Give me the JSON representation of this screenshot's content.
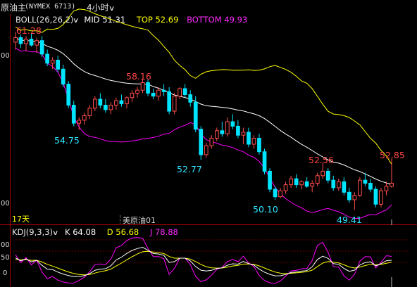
{
  "header": {
    "name": "原油主",
    "code": "(NYMEX 6713)",
    "period": "4小时",
    "period_chevron": "chevron-down-icon"
  },
  "boll_legend": {
    "label": "BOLL(26,26,2)",
    "mid": "MID 51.31",
    "top": "TOP 52.69",
    "bottom": "BOTTOM 49.93",
    "chevron": "chevron-down-icon"
  },
  "kdj_legend": {
    "label": "KDJ(9,3,3)",
    "k": "K 64.08",
    "d": "D 56.68",
    "j": "J 78.88",
    "chevron": "chevron-down-icon"
  },
  "main_chart": {
    "y_labels": [
      "00",
      "00"
    ],
    "period_marker": "17天",
    "watermark": "美原油01",
    "annotations": {
      "high1": "61.28",
      "high2": "58.16",
      "low1": "54.75",
      "low2": "52.77",
      "low3": "50.10",
      "high3": "52.56",
      "low4": "49.41",
      "high4": "52.85"
    }
  },
  "kdj_chart": {
    "y_labels": [
      "00",
      "50",
      "0"
    ]
  },
  "colors": {
    "background": "#000000",
    "up": "#ff4d4d",
    "down": "#00e5ff",
    "boll_mid": "#ffffff",
    "boll_top": "#ffff00",
    "boll_bottom": "#ff00ff",
    "high_label": "#ff4545",
    "low_label": "#2ee6ff",
    "axis": "#b00000",
    "grid": "#6e0000",
    "k_line": "#ffffff",
    "d_line": "#ffff00",
    "j_line": "#ff00ff"
  },
  "chart_data": {
    "type": "candlestick",
    "panels": [
      "price",
      "kdj"
    ],
    "boll": {
      "mid": 51.31,
      "top": 52.69,
      "bottom": 49.93
    },
    "kdj": {
      "k": 64.08,
      "d": 56.68,
      "j": 78.88
    },
    "marked_highs": [
      61.28,
      58.16,
      52.56,
      52.85
    ],
    "marked_lows": [
      54.75,
      52.77,
      50.1,
      49.41
    ],
    "series": [
      {
        "o": 60.6,
        "h": 61.28,
        "l": 60.1,
        "c": 60.9
      },
      {
        "o": 60.9,
        "h": 61.1,
        "l": 60.2,
        "c": 60.5
      },
      {
        "o": 60.5,
        "h": 61.0,
        "l": 60.0,
        "c": 60.8
      },
      {
        "o": 60.8,
        "h": 61.2,
        "l": 60.3,
        "c": 60.4
      },
      {
        "o": 60.4,
        "h": 60.9,
        "l": 59.9,
        "c": 60.7
      },
      {
        "o": 60.7,
        "h": 61.0,
        "l": 59.6,
        "c": 59.8
      },
      {
        "o": 59.8,
        "h": 60.1,
        "l": 59.0,
        "c": 59.2
      },
      {
        "o": 59.2,
        "h": 59.6,
        "l": 58.8,
        "c": 59.4
      },
      {
        "o": 59.4,
        "h": 59.7,
        "l": 58.6,
        "c": 58.8
      },
      {
        "o": 58.8,
        "h": 59.1,
        "l": 57.6,
        "c": 57.8
      },
      {
        "o": 57.8,
        "h": 58.0,
        "l": 56.2,
        "c": 56.4
      },
      {
        "o": 56.4,
        "h": 56.7,
        "l": 55.0,
        "c": 55.2
      },
      {
        "o": 55.2,
        "h": 55.6,
        "l": 54.75,
        "c": 55.4
      },
      {
        "o": 55.4,
        "h": 55.9,
        "l": 55.1,
        "c": 55.7
      },
      {
        "o": 55.7,
        "h": 56.4,
        "l": 55.5,
        "c": 56.2
      },
      {
        "o": 56.2,
        "h": 57.0,
        "l": 56.0,
        "c": 56.8
      },
      {
        "o": 56.8,
        "h": 57.2,
        "l": 56.2,
        "c": 56.4
      },
      {
        "o": 56.4,
        "h": 56.8,
        "l": 55.9,
        "c": 56.1
      },
      {
        "o": 56.1,
        "h": 56.6,
        "l": 55.8,
        "c": 56.4
      },
      {
        "o": 56.4,
        "h": 56.9,
        "l": 56.1,
        "c": 56.7
      },
      {
        "o": 56.7,
        "h": 57.1,
        "l": 56.3,
        "c": 56.5
      },
      {
        "o": 56.5,
        "h": 57.0,
        "l": 56.2,
        "c": 56.9
      },
      {
        "o": 56.9,
        "h": 57.4,
        "l": 56.6,
        "c": 57.2
      },
      {
        "o": 57.2,
        "h": 57.6,
        "l": 56.9,
        "c": 57.4
      },
      {
        "o": 57.4,
        "h": 58.16,
        "l": 57.2,
        "c": 57.9
      },
      {
        "o": 57.9,
        "h": 58.1,
        "l": 57.0,
        "c": 57.2
      },
      {
        "o": 57.2,
        "h": 57.5,
        "l": 56.8,
        "c": 57.0
      },
      {
        "o": 57.0,
        "h": 57.6,
        "l": 56.7,
        "c": 57.4
      },
      {
        "o": 57.4,
        "h": 57.8,
        "l": 57.0,
        "c": 57.3
      },
      {
        "o": 57.3,
        "h": 57.6,
        "l": 55.8,
        "c": 56.0
      },
      {
        "o": 56.0,
        "h": 57.2,
        "l": 55.8,
        "c": 57.0
      },
      {
        "o": 57.0,
        "h": 57.6,
        "l": 56.8,
        "c": 57.5
      },
      {
        "o": 57.5,
        "h": 57.8,
        "l": 56.9,
        "c": 57.1
      },
      {
        "o": 57.1,
        "h": 57.4,
        "l": 56.3,
        "c": 56.6
      },
      {
        "o": 56.6,
        "h": 57.0,
        "l": 54.6,
        "c": 54.8
      },
      {
        "o": 54.8,
        "h": 55.0,
        "l": 52.77,
        "c": 53.1
      },
      {
        "o": 53.1,
        "h": 53.9,
        "l": 52.9,
        "c": 53.7
      },
      {
        "o": 53.7,
        "h": 54.4,
        "l": 53.5,
        "c": 54.2
      },
      {
        "o": 54.2,
        "h": 54.9,
        "l": 54.0,
        "c": 54.7
      },
      {
        "o": 54.7,
        "h": 55.3,
        "l": 54.3,
        "c": 54.5
      },
      {
        "o": 54.5,
        "h": 55.6,
        "l": 54.3,
        "c": 55.3
      },
      {
        "o": 55.3,
        "h": 55.8,
        "l": 54.8,
        "c": 55.0
      },
      {
        "o": 55.0,
        "h": 55.4,
        "l": 54.2,
        "c": 54.4
      },
      {
        "o": 54.4,
        "h": 54.9,
        "l": 53.8,
        "c": 54.6
      },
      {
        "o": 54.6,
        "h": 54.9,
        "l": 53.6,
        "c": 53.8
      },
      {
        "o": 53.8,
        "h": 54.4,
        "l": 53.5,
        "c": 54.2
      },
      {
        "o": 54.2,
        "h": 54.5,
        "l": 53.1,
        "c": 53.3
      },
      {
        "o": 53.3,
        "h": 53.5,
        "l": 51.8,
        "c": 52.0
      },
      {
        "o": 52.0,
        "h": 52.2,
        "l": 50.6,
        "c": 50.8
      },
      {
        "o": 50.8,
        "h": 51.0,
        "l": 50.1,
        "c": 50.3
      },
      {
        "o": 50.3,
        "h": 50.9,
        "l": 50.2,
        "c": 50.7
      },
      {
        "o": 50.7,
        "h": 51.3,
        "l": 50.5,
        "c": 51.1
      },
      {
        "o": 51.1,
        "h": 51.7,
        "l": 50.9,
        "c": 51.5
      },
      {
        "o": 51.5,
        "h": 51.8,
        "l": 50.9,
        "c": 51.1
      },
      {
        "o": 51.1,
        "h": 51.4,
        "l": 50.8,
        "c": 51.3
      },
      {
        "o": 51.3,
        "h": 51.6,
        "l": 50.9,
        "c": 51.0
      },
      {
        "o": 51.0,
        "h": 51.4,
        "l": 50.6,
        "c": 51.2
      },
      {
        "o": 51.2,
        "h": 51.9,
        "l": 51.0,
        "c": 51.7
      },
      {
        "o": 51.7,
        "h": 52.56,
        "l": 51.5,
        "c": 52.0
      },
      {
        "o": 52.0,
        "h": 52.2,
        "l": 51.2,
        "c": 51.4
      },
      {
        "o": 51.4,
        "h": 51.7,
        "l": 50.7,
        "c": 50.9
      },
      {
        "o": 50.9,
        "h": 51.5,
        "l": 50.7,
        "c": 51.3
      },
      {
        "o": 51.3,
        "h": 51.6,
        "l": 50.4,
        "c": 50.6
      },
      {
        "o": 50.6,
        "h": 50.9,
        "l": 49.9,
        "c": 50.1
      },
      {
        "o": 50.1,
        "h": 50.6,
        "l": 49.41,
        "c": 50.4
      },
      {
        "o": 50.4,
        "h": 51.6,
        "l": 50.3,
        "c": 51.4
      },
      {
        "o": 51.4,
        "h": 51.9,
        "l": 51.0,
        "c": 51.2
      },
      {
        "o": 51.2,
        "h": 51.5,
        "l": 50.6,
        "c": 50.8
      },
      {
        "o": 50.8,
        "h": 51.0,
        "l": 49.6,
        "c": 49.8
      },
      {
        "o": 49.8,
        "h": 50.9,
        "l": 49.6,
        "c": 50.7
      },
      {
        "o": 50.7,
        "h": 51.3,
        "l": 50.4,
        "c": 51.0
      },
      {
        "o": 51.0,
        "h": 52.85,
        "l": 50.9,
        "c": 51.2
      }
    ]
  }
}
